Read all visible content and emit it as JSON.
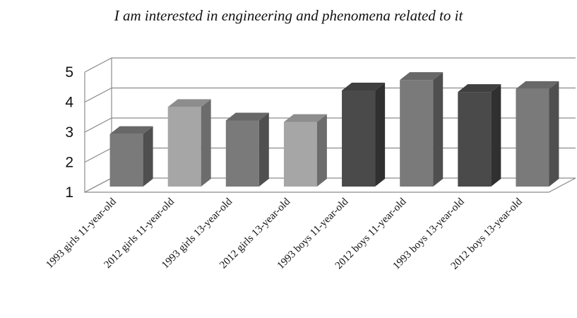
{
  "chart_data": {
    "type": "bar",
    "title": "I am interested in engineering and phenomena related to it",
    "xlabel": "",
    "ylabel": "",
    "ylim": [
      1,
      5
    ],
    "yticks": [
      1,
      2,
      3,
      4,
      5
    ],
    "grid": true,
    "style": "3d-column",
    "categories": [
      "1993 girls 11-year-old",
      "2012 girls 11-year-old",
      "1993 girls 13-year-old",
      "2012 girls 13-year-old",
      "1993 boys 11-year-old",
      "2012 boys 11-year-old",
      "1993 boys 13-year-old",
      "2012 boys 13-year-old"
    ],
    "values": [
      2.75,
      3.65,
      3.2,
      3.15,
      4.2,
      4.55,
      4.15,
      4.25
    ],
    "colors": [
      "#7a7a7a",
      "#a6a6a6",
      "#7a7a7a",
      "#a6a6a6",
      "#4a4a4a",
      "#7a7a7a",
      "#4a4a4a",
      "#7a7a7a"
    ]
  }
}
